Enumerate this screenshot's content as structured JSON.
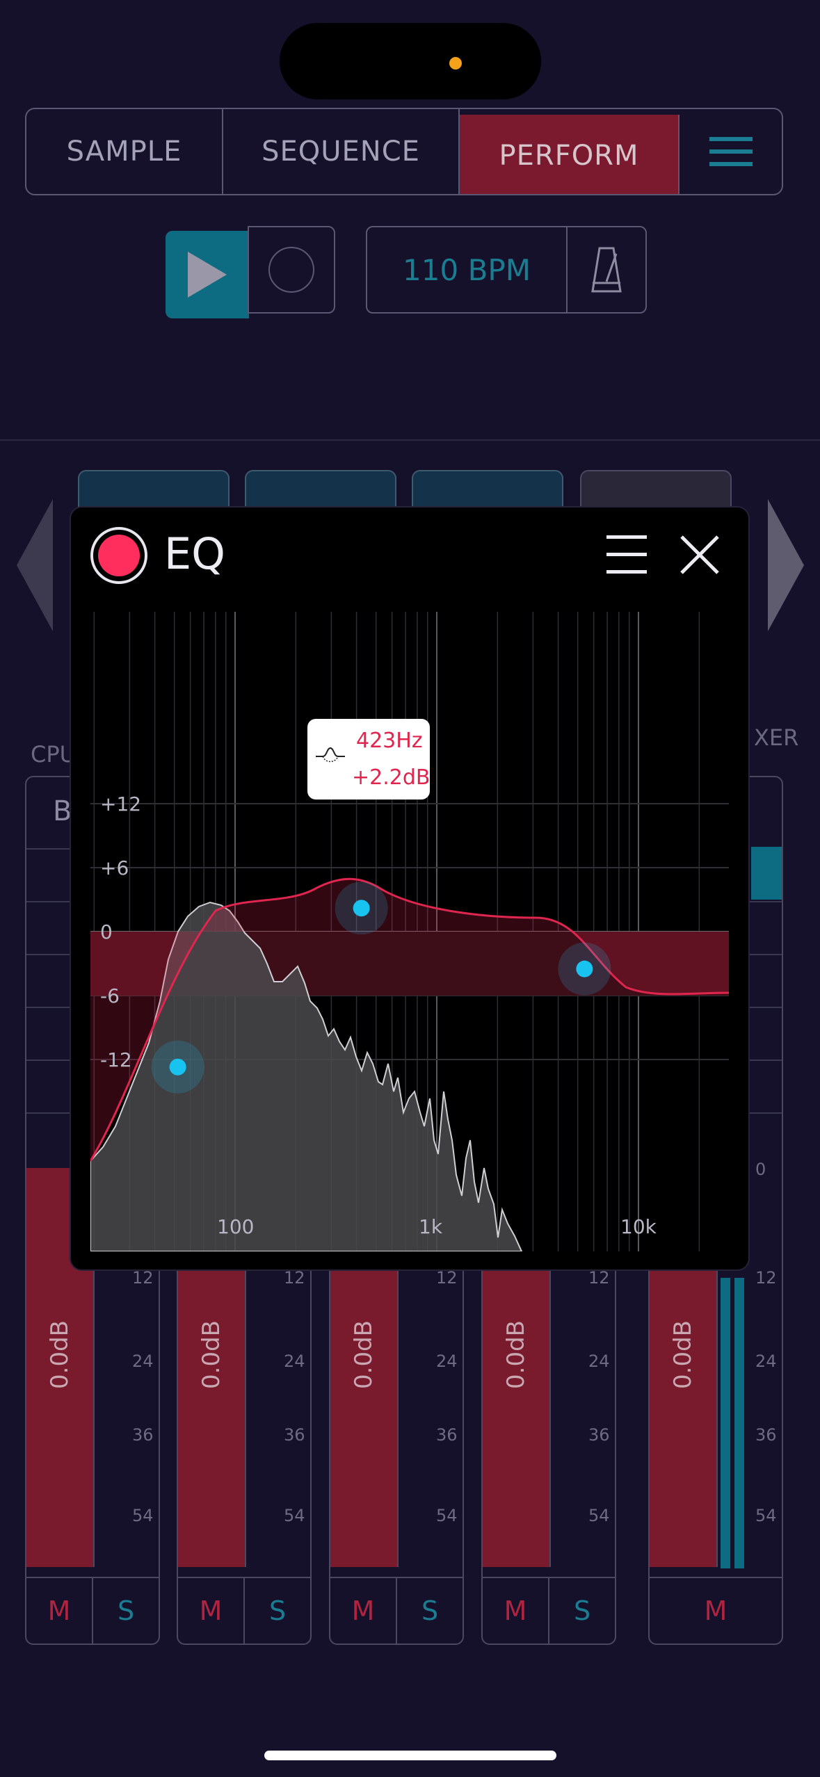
{
  "top_tabs": {
    "sample": "SAMPLE",
    "sequence": "SEQUENCE",
    "perform": "PERFORM",
    "active": "perform"
  },
  "transport": {
    "bpm": "110 BPM",
    "play_icon": "play-icon",
    "record_icon": "record-icon",
    "metronome_icon": "metronome-icon"
  },
  "mixer": {
    "left_label": "CPU",
    "right_label": "XER",
    "partial_label": "B",
    "channels": [
      {
        "level": "0.0dB",
        "scale": [
          "12",
          "24",
          "36",
          "54"
        ],
        "mute": "M",
        "solo": "S"
      },
      {
        "level": "0.0dB",
        "scale": [
          "12",
          "24",
          "36",
          "54"
        ],
        "mute": "M",
        "solo": "S"
      },
      {
        "level": "0.0dB",
        "scale": [
          "12",
          "24",
          "36",
          "54"
        ],
        "mute": "M",
        "solo": "S"
      },
      {
        "level": "0.0dB",
        "scale": [
          "12",
          "24",
          "36",
          "54"
        ],
        "mute": "M",
        "solo": "S"
      },
      {
        "level": "0.0dB",
        "scale": [
          "0",
          "12",
          "24",
          "36",
          "54"
        ],
        "mute": "M"
      }
    ]
  },
  "eq": {
    "title": "EQ",
    "enabled": true,
    "tooltip": {
      "freq": "423Hz",
      "gain": "+2.2dB"
    },
    "gain_labels": [
      "+12",
      "+6",
      "0",
      "-6",
      "-12"
    ],
    "freq_labels": [
      "100",
      "1k",
      "10k"
    ],
    "accent": "#e0264f",
    "node_color": "#19c3f0",
    "nodes": [
      {
        "freq_hz": 52,
        "gain_db": -12.7
      },
      {
        "freq_hz": 423,
        "gain_db": 2.2
      },
      {
        "freq_hz": 5400,
        "gain_db": -3.5
      }
    ]
  },
  "colors": {
    "background": "#15112a",
    "perform_active": "#7b1a2e",
    "teal": "#1b7d91",
    "eq_curve": "#e0264f",
    "node": "#19c3f0"
  }
}
